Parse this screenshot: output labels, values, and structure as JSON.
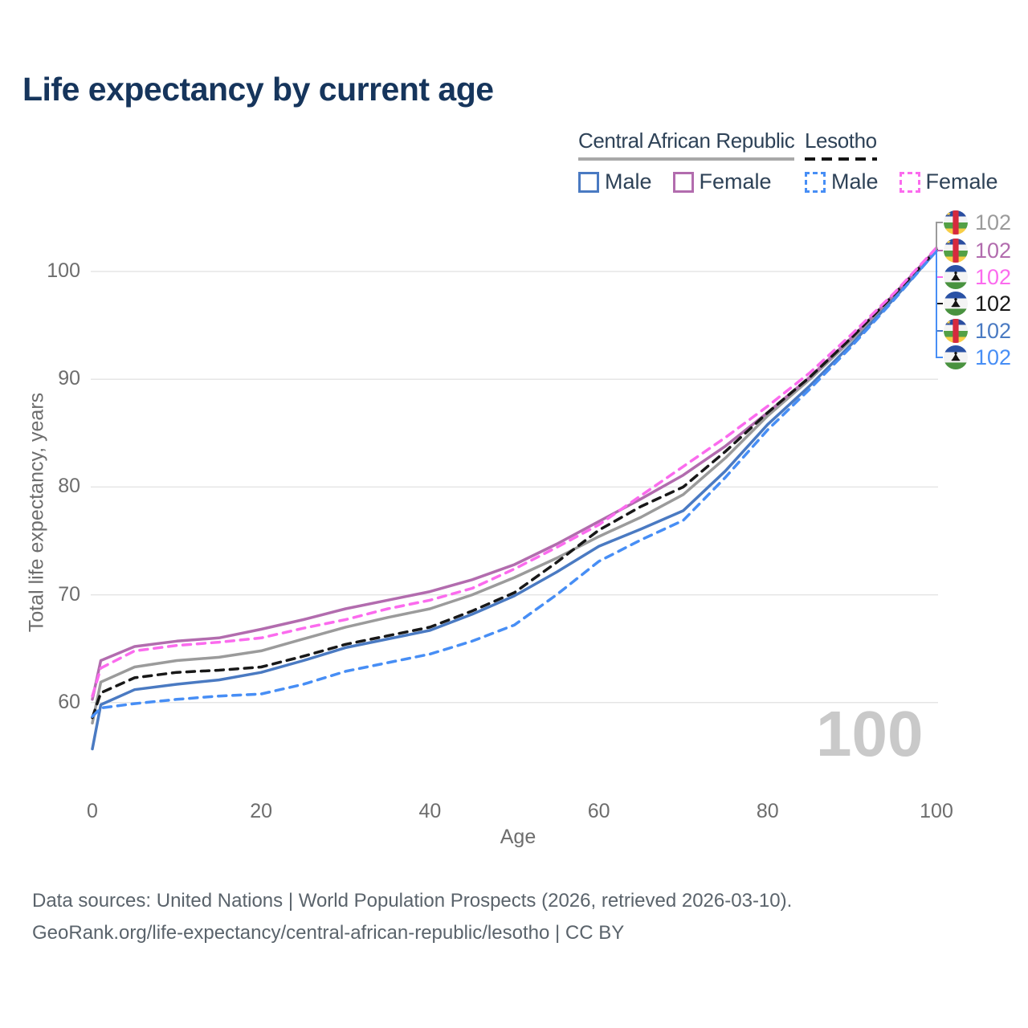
{
  "title": "Life expectancy by current age",
  "watermark": "100",
  "legend": {
    "groups": [
      {
        "name": "Central African Republic",
        "line_style": "solid",
        "rule_color": "#a8a8a8",
        "items": [
          {
            "label": "Male",
            "color": "#4a7ac2",
            "dashed": false
          },
          {
            "label": "Female",
            "color": "#b26cae",
            "dashed": false
          }
        ]
      },
      {
        "name": "Lesotho",
        "line_style": "dashed",
        "rule_color": "#151515",
        "items": [
          {
            "label": "Male",
            "color": "#478ef5",
            "dashed": true
          },
          {
            "label": "Female",
            "color": "#fb6bee",
            "dashed": true
          }
        ]
      }
    ]
  },
  "chart_data": {
    "type": "line",
    "title": "Life expectancy by current age",
    "xlabel": "Age",
    "ylabel": "Total life expectancy, years",
    "x_ticks": [
      0,
      20,
      40,
      60,
      80,
      100
    ],
    "y_ticks": [
      60,
      70,
      80,
      90,
      100
    ],
    "xlim": [
      0,
      100
    ],
    "ylim": [
      55,
      103
    ],
    "grid": "horizontal-only",
    "legend_position": "top-right",
    "ages": [
      0,
      1,
      5,
      10,
      15,
      20,
      25,
      30,
      35,
      40,
      45,
      50,
      55,
      60,
      65,
      70,
      75,
      80,
      85,
      90,
      95,
      100
    ],
    "series": [
      {
        "id": "car-all",
        "name": "Central African Republic — Both sexes",
        "country": "Central African Republic",
        "flag": "car",
        "color": "#9b9b9b",
        "dash": false,
        "end_label": "102",
        "values": [
          58.1,
          61.9,
          63.3,
          63.9,
          64.2,
          64.8,
          65.9,
          67.0,
          67.9,
          68.7,
          70.0,
          71.6,
          73.4,
          75.4,
          77.2,
          79.3,
          82.7,
          86.6,
          90.0,
          93.7,
          97.7,
          102.0
        ]
      },
      {
        "id": "car-male",
        "name": "Central African Republic — Male",
        "country": "Central African Republic",
        "flag": "car",
        "color": "#4a7ac2",
        "dash": false,
        "end_label": "102",
        "values": [
          55.7,
          59.8,
          61.2,
          61.7,
          62.1,
          62.8,
          63.9,
          65.1,
          65.9,
          66.7,
          68.2,
          69.9,
          72.1,
          74.5,
          76.1,
          77.8,
          81.5,
          85.8,
          89.4,
          93.3,
          97.5,
          101.9
        ]
      },
      {
        "id": "car-female",
        "name": "Central African Republic — Female",
        "country": "Central African Republic",
        "flag": "car",
        "color": "#b26cae",
        "dash": false,
        "end_label": "102",
        "values": [
          60.3,
          63.9,
          65.2,
          65.7,
          66.0,
          66.8,
          67.7,
          68.7,
          69.5,
          70.3,
          71.4,
          72.8,
          74.7,
          76.8,
          78.9,
          81.1,
          83.8,
          86.9,
          90.2,
          93.9,
          97.9,
          102.1
        ]
      },
      {
        "id": "lesotho-all",
        "name": "Lesotho — Both sexes",
        "country": "Lesotho",
        "flag": "lesotho",
        "color": "#181818",
        "dash": true,
        "end_label": "102",
        "values": [
          58.6,
          60.9,
          62.3,
          62.8,
          63.0,
          63.3,
          64.3,
          65.4,
          66.2,
          67.0,
          68.5,
          70.2,
          73.0,
          76.0,
          78.2,
          80.0,
          83.3,
          86.9,
          90.2,
          93.9,
          97.9,
          102.0
        ]
      },
      {
        "id": "lesotho-male",
        "name": "Lesotho — Male",
        "country": "Lesotho",
        "flag": "lesotho",
        "color": "#478ef5",
        "dash": true,
        "end_label": "102",
        "values": [
          58.7,
          59.5,
          59.9,
          60.3,
          60.6,
          60.8,
          61.7,
          62.9,
          63.7,
          64.5,
          65.7,
          67.2,
          70.0,
          73.1,
          75.1,
          76.9,
          80.9,
          85.3,
          89.1,
          93.1,
          97.4,
          101.9
        ]
      },
      {
        "id": "lesotho-female",
        "name": "Lesotho — Female",
        "country": "Lesotho",
        "flag": "lesotho",
        "color": "#fb6bee",
        "dash": true,
        "end_label": "102",
        "values": [
          60.6,
          63.2,
          64.8,
          65.3,
          65.6,
          66.0,
          66.9,
          67.7,
          68.7,
          69.5,
          70.6,
          72.4,
          74.4,
          76.5,
          79.2,
          81.9,
          84.6,
          87.5,
          90.6,
          94.2,
          98.0,
          102.2
        ]
      }
    ],
    "endpoint_order": [
      "car-all",
      "car-female",
      "lesotho-female",
      "lesotho-all",
      "car-male",
      "lesotho-male"
    ],
    "current_age_indicator": "100"
  },
  "footer": {
    "line1": "Data sources: United Nations | World Population Prospects (2026, retrieved 2026-03-10).",
    "line2": "GeoRank.org/life-expectancy/central-african-republic/lesotho | CC BY"
  }
}
